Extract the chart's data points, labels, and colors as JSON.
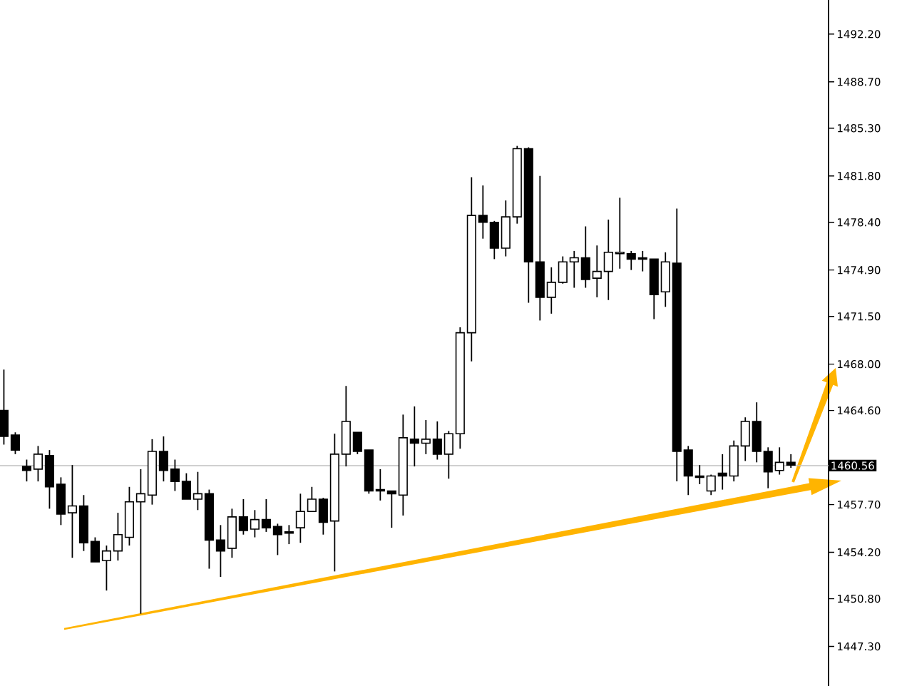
{
  "chart_data": {
    "type": "candlestick",
    "categories": [
      null,
      null,
      null,
      null,
      null,
      null,
      null,
      null,
      null,
      null,
      null,
      null,
      null,
      null,
      null,
      null,
      null,
      null,
      null,
      null,
      null,
      null,
      null,
      null,
      null,
      null,
      null,
      null,
      null,
      null,
      null,
      null,
      null,
      null,
      null,
      null,
      null,
      null,
      null,
      null,
      null,
      null,
      null,
      null,
      null,
      null,
      null,
      null,
      null,
      null,
      null,
      null,
      null,
      null,
      null,
      null,
      null,
      null,
      null,
      null,
      null,
      null,
      null,
      null,
      null,
      null,
      null,
      null,
      null,
      null
    ],
    "ohlc": [
      [
        1464.6,
        1467.6,
        1462.1,
        1462.7
      ],
      [
        1462.8,
        1463.0,
        1461.4,
        1461.7
      ],
      [
        1460.5,
        1461.0,
        1459.4,
        1460.2
      ],
      [
        1460.3,
        1462.0,
        1459.4,
        1461.4
      ],
      [
        1461.3,
        1461.7,
        1457.4,
        1459.0
      ],
      [
        1459.2,
        1459.7,
        1456.2,
        1457.0
      ],
      [
        1457.1,
        1460.6,
        1453.8,
        1457.6
      ],
      [
        1457.6,
        1458.4,
        1454.3,
        1454.9
      ],
      [
        1455.0,
        1455.3,
        1453.5,
        1453.5
      ],
      [
        1453.6,
        1454.7,
        1451.4,
        1454.3
      ],
      [
        1454.3,
        1457.1,
        1453.6,
        1455.5
      ],
      [
        1455.3,
        1459.0,
        1454.7,
        1457.9
      ],
      [
        1457.9,
        1460.3,
        1449.7,
        1458.5
      ],
      [
        1458.4,
        1462.5,
        1457.7,
        1461.6
      ],
      [
        1461.6,
        1462.7,
        1459.4,
        1460.2
      ],
      [
        1460.3,
        1461.0,
        1458.7,
        1459.4
      ],
      [
        1459.4,
        1460.0,
        1458.1,
        1458.1
      ],
      [
        1458.1,
        1460.1,
        1457.3,
        1458.5
      ],
      [
        1458.5,
        1458.8,
        1453.0,
        1455.1
      ],
      [
        1455.1,
        1456.2,
        1452.4,
        1454.3
      ],
      [
        1454.5,
        1457.4,
        1453.8,
        1456.8
      ],
      [
        1456.8,
        1458.1,
        1455.5,
        1455.8
      ],
      [
        1455.9,
        1457.3,
        1455.3,
        1456.6
      ],
      [
        1456.6,
        1458.1,
        1455.7,
        1456.0
      ],
      [
        1456.1,
        1456.3,
        1454.0,
        1455.5
      ],
      [
        1455.7,
        1456.2,
        1454.8,
        1455.6
      ],
      [
        1456.0,
        1458.5,
        1454.9,
        1457.2
      ],
      [
        1457.2,
        1459.0,
        1457.2,
        1458.1
      ],
      [
        1458.1,
        1458.2,
        1455.5,
        1456.4
      ],
      [
        1456.5,
        1462.9,
        1452.8,
        1461.4
      ],
      [
        1461.4,
        1466.4,
        1460.5,
        1463.8
      ],
      [
        1463.0,
        1463.0,
        1461.4,
        1461.6
      ],
      [
        1461.7,
        1461.7,
        1458.5,
        1458.7
      ],
      [
        1458.8,
        1460.3,
        1458.0,
        1458.7
      ],
      [
        1458.7,
        1458.7,
        1456.0,
        1458.5
      ],
      [
        1458.4,
        1464.3,
        1456.9,
        1462.6
      ],
      [
        1462.5,
        1464.9,
        1460.5,
        1462.2
      ],
      [
        1462.2,
        1463.9,
        1461.4,
        1462.5
      ],
      [
        1462.5,
        1463.8,
        1461.0,
        1461.4
      ],
      [
        1461.4,
        1463.1,
        1459.6,
        1462.9
      ],
      [
        1462.9,
        1470.7,
        1461.8,
        1470.3
      ],
      [
        1470.3,
        1481.7,
        1468.2,
        1478.9
      ],
      [
        1478.9,
        1481.1,
        1477.2,
        1478.4
      ],
      [
        1478.4,
        1478.5,
        1475.7,
        1476.5
      ],
      [
        1476.5,
        1480.0,
        1475.9,
        1478.8
      ],
      [
        1478.8,
        1484.0,
        1478.3,
        1483.8
      ],
      [
        1483.8,
        1483.9,
        1472.5,
        1475.5
      ],
      [
        1475.5,
        1481.8,
        1471.2,
        1472.9
      ],
      [
        1472.9,
        1475.1,
        1471.7,
        1474.0
      ],
      [
        1474.0,
        1475.9,
        1473.9,
        1475.5
      ],
      [
        1475.5,
        1476.3,
        1473.6,
        1475.8
      ],
      [
        1475.8,
        1478.1,
        1473.6,
        1474.2
      ],
      [
        1474.3,
        1476.7,
        1472.9,
        1474.8
      ],
      [
        1474.8,
        1478.6,
        1472.7,
        1476.2
      ],
      [
        1476.1,
        1480.2,
        1475.0,
        1476.2
      ],
      [
        1476.1,
        1476.3,
        1474.9,
        1475.7
      ],
      [
        1475.8,
        1476.3,
        1474.8,
        1475.7
      ],
      [
        1475.7,
        1475.7,
        1471.3,
        1473.1
      ],
      [
        1473.3,
        1476.2,
        1472.2,
        1475.5
      ],
      [
        1475.4,
        1479.4,
        1459.4,
        1461.6
      ],
      [
        1461.7,
        1462.0,
        1458.4,
        1459.8
      ],
      [
        1459.8,
        1460.6,
        1459.2,
        1459.7
      ],
      [
        1458.7,
        1459.9,
        1458.4,
        1459.8
      ],
      [
        1460.0,
        1461.4,
        1458.8,
        1459.8
      ],
      [
        1459.8,
        1462.4,
        1459.4,
        1462.0
      ],
      [
        1462.0,
        1464.1,
        1460.9,
        1463.8
      ],
      [
        1463.8,
        1465.2,
        1460.8,
        1461.6
      ],
      [
        1461.6,
        1461.9,
        1458.9,
        1460.1
      ],
      [
        1460.2,
        1461.9,
        1459.9,
        1460.8
      ],
      [
        1460.8,
        1461.4,
        1460.4,
        1460.6
      ]
    ],
    "ylim": [
      1444.4,
      1494.7
    ],
    "yticks": [
      {
        "value": 1447.3,
        "label": "1447.30"
      },
      {
        "value": 1450.8,
        "label": "1450.80"
      },
      {
        "value": 1454.2,
        "label": "1454.20"
      },
      {
        "value": 1457.7,
        "label": "1457.70"
      },
      {
        "value": 1464.6,
        "label": "1464.60"
      },
      {
        "value": 1468,
        "label": "1468.00"
      },
      {
        "value": 1471.5,
        "label": "1471.50"
      },
      {
        "value": 1474.9,
        "label": "1474.90"
      },
      {
        "value": 1478.4,
        "label": "1478.40"
      },
      {
        "value": 1481.8,
        "label": "1481.80"
      },
      {
        "value": 1485.3,
        "label": "1485.30"
      },
      {
        "value": 1488.7,
        "label": "1488.70"
      },
      {
        "value": 1492.2,
        "label": "1492.20"
      }
    ],
    "tick_labels": "y",
    "ref_lines": [
      {
        "axis": "y",
        "value": 1460.56,
        "label": "1460.56",
        "color": "#c0c0c0"
      }
    ]
  }
}
